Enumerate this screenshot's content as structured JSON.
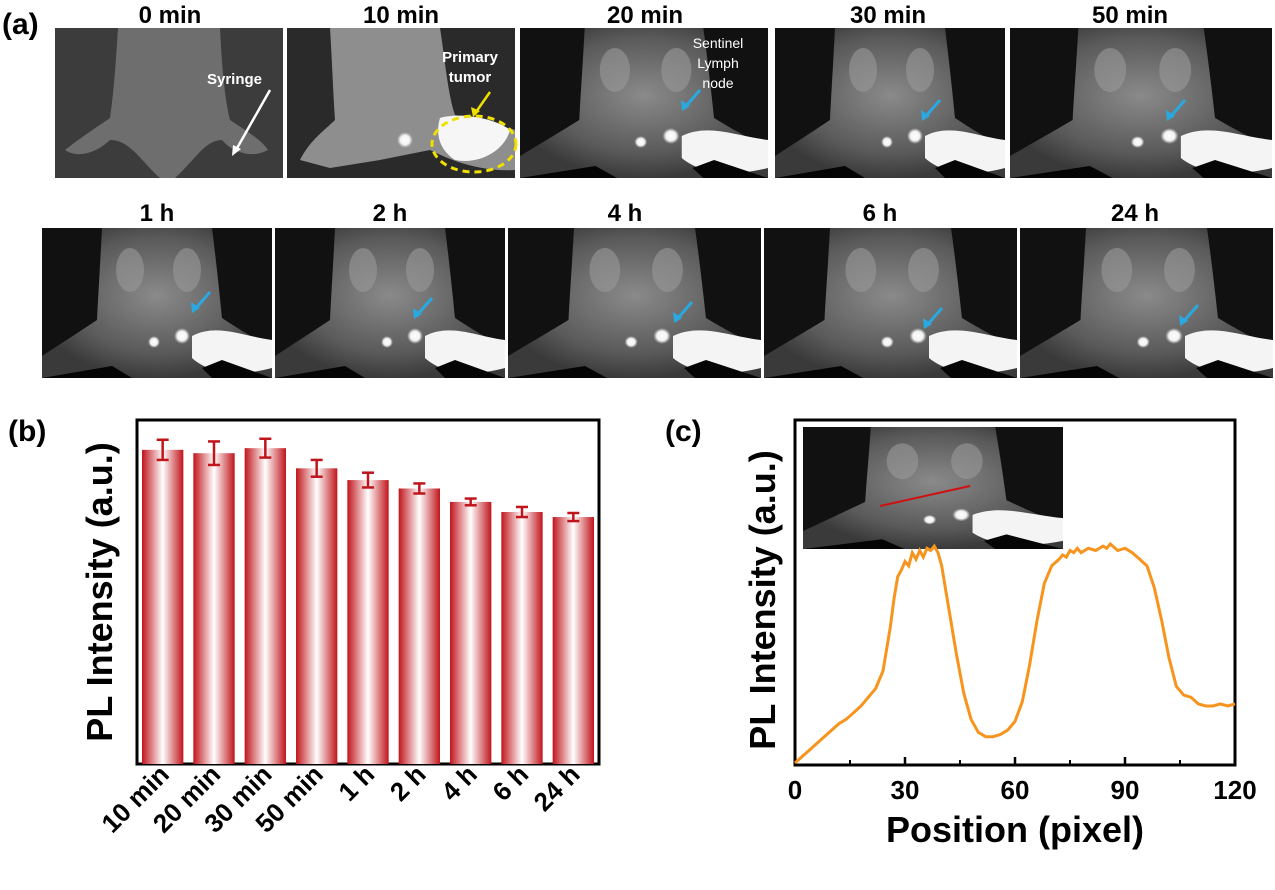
{
  "panel_a": {
    "label": "(a)",
    "row1_times": [
      "0 min",
      "10 min",
      "20 min",
      "30 min",
      "50 min"
    ],
    "row2_times": [
      "1 h",
      "2 h",
      "4 h",
      "6 h",
      "24 h"
    ],
    "annotations": {
      "syringe": "Syringe",
      "primary_tumor": [
        "Primary",
        "tumor"
      ],
      "sentinel": [
        "Sentinel",
        "Lymph",
        "node"
      ]
    },
    "colors": {
      "arrow_sentinel": "#2aa8e0",
      "arrow_tumor": "#f0e000",
      "tumor_circle": "#f0e000"
    }
  },
  "panel_b": {
    "label": "(b)",
    "bar_color": "#c0151b",
    "chart_data": {
      "type": "bar",
      "categories": [
        "10 min",
        "20 min",
        "30 min",
        "50 min",
        "1 h",
        "2 h",
        "4 h",
        "6 h",
        "24 h"
      ],
      "values": [
        0.935,
        0.925,
        0.94,
        0.88,
        0.845,
        0.82,
        0.78,
        0.75,
        0.735
      ],
      "errors": [
        0.03,
        0.035,
        0.028,
        0.025,
        0.022,
        0.015,
        0.01,
        0.015,
        0.012
      ],
      "ylabel": "PL Intensity (a.u.)",
      "xlabel": "",
      "ylim": [
        0,
        1
      ]
    }
  },
  "panel_c": {
    "label": "(c)",
    "line_color": "#f7941d",
    "inset_line_color": "#d01010",
    "chart_data": {
      "type": "line",
      "x": [
        0,
        2,
        4,
        6,
        8,
        10,
        12,
        14,
        16,
        18,
        20,
        22,
        24,
        26,
        27,
        28,
        29,
        30,
        31,
        32,
        33,
        34,
        35,
        36,
        37,
        38,
        39,
        40,
        42,
        44,
        46,
        48,
        50,
        52,
        54,
        56,
        58,
        60,
        62,
        64,
        66,
        68,
        70,
        72,
        73,
        74,
        75,
        76,
        77,
        78,
        80,
        82,
        84,
        85,
        86,
        88,
        90,
        92,
        94,
        96,
        98,
        100,
        102,
        104,
        106,
        108,
        110,
        112,
        114,
        116,
        118,
        120
      ],
      "y": [
        0.0,
        0.03,
        0.06,
        0.09,
        0.12,
        0.15,
        0.18,
        0.2,
        0.23,
        0.26,
        0.3,
        0.34,
        0.42,
        0.62,
        0.75,
        0.85,
        0.88,
        0.92,
        0.9,
        0.96,
        0.93,
        0.97,
        0.94,
        0.98,
        0.97,
        0.99,
        0.96,
        0.9,
        0.7,
        0.5,
        0.32,
        0.2,
        0.14,
        0.12,
        0.12,
        0.13,
        0.15,
        0.19,
        0.28,
        0.45,
        0.65,
        0.82,
        0.9,
        0.93,
        0.95,
        0.94,
        0.97,
        0.96,
        0.98,
        0.96,
        0.98,
        0.97,
        0.99,
        0.98,
        1.0,
        0.97,
        0.98,
        0.96,
        0.93,
        0.9,
        0.8,
        0.65,
        0.48,
        0.35,
        0.31,
        0.3,
        0.27,
        0.26,
        0.26,
        0.27,
        0.26,
        0.27
      ],
      "xlabel": "Position (pixel)",
      "ylabel": "PL Intensity (a.u.)",
      "xlim": [
        0,
        120
      ],
      "xticks": [
        "0",
        "30",
        "60",
        "90",
        "120"
      ],
      "ylim": [
        0,
        1.05
      ]
    }
  }
}
